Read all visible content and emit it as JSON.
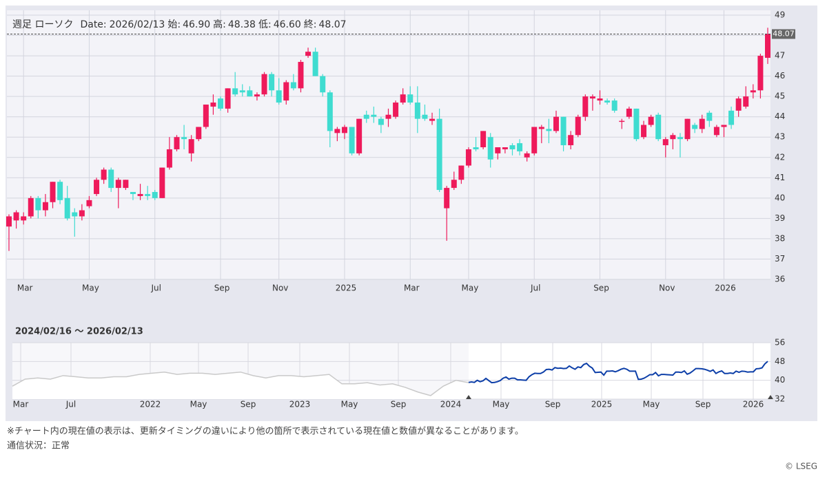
{
  "header": {
    "title": "週足 ローソク",
    "date_label": "Date:",
    "date": "2026/02/13",
    "open_label": "始:",
    "open": "46.90",
    "high_label": "高:",
    "high": "48.38",
    "low_label": "低:",
    "low": "46.60",
    "close_label": "終:",
    "close": "48.07"
  },
  "chart_data": [
    {
      "type": "candlestick",
      "categories": [
        null,
        null,
        "Mar",
        null,
        null,
        null,
        null,
        null,
        null,
        null,
        null,
        "May",
        null,
        null,
        null,
        null,
        null,
        null,
        null,
        null,
        "Jul",
        null,
        null,
        null,
        null,
        null,
        null,
        null,
        null,
        "Sep",
        null,
        null,
        null,
        null,
        null,
        null,
        null,
        "Nov",
        null,
        null,
        null,
        null,
        null,
        null,
        null,
        null,
        "2025",
        null,
        null,
        null,
        null,
        null,
        null,
        null,
        null,
        "Mar",
        null,
        null,
        null,
        null,
        null,
        null,
        null,
        "May",
        null,
        null,
        null,
        null,
        null,
        null,
        null,
        null,
        "Jul",
        null,
        null,
        null,
        null,
        null,
        null,
        null,
        null,
        "Sep",
        null,
        null,
        null,
        null,
        null,
        null,
        null,
        null,
        "Nov",
        null,
        null,
        null,
        null,
        null,
        null,
        null,
        "2026",
        null,
        null,
        null,
        null,
        null,
        null
      ],
      "open": [
        38.6,
        38.9,
        38.9,
        39.1,
        40.0,
        39.4,
        39.8,
        40.8,
        40.0,
        39.3,
        39.1,
        39.6,
        40.2,
        40.9,
        41.4,
        40.5,
        40.5,
        40.3,
        40.1,
        40.2,
        40.3,
        40.0,
        41.5,
        42.4,
        43.0,
        42.2,
        42.9,
        43.5,
        44.5,
        44.9,
        44.4,
        45.4,
        45.3,
        45.3,
        45.0,
        45.1,
        46.1,
        45.3,
        44.8,
        45.7,
        45.4,
        47.0,
        47.2,
        46.0,
        45.2,
        43.2,
        43.2,
        43.5,
        42.2,
        44.1,
        44.1,
        43.9,
        43.9,
        44.0,
        44.7,
        45.1,
        44.7,
        44.1,
        43.8,
        43.9,
        39.5,
        40.5,
        40.9,
        41.6,
        42.5,
        42.5,
        43.0,
        42.2,
        42.4,
        42.6,
        42.7,
        42.0,
        42.2,
        43.4,
        43.4,
        43.3,
        44.0,
        42.6,
        43.1,
        44.0,
        44.9,
        44.8,
        44.8,
        44.8,
        43.8,
        44.0,
        44.4,
        43.0,
        43.6,
        44.1,
        42.6,
        42.9,
        43.0,
        42.9,
        43.6,
        43.4,
        44.2,
        43.1,
        43.5,
        44.3,
        44.3,
        44.5,
        45.2,
        45.3,
        46.9
      ],
      "high": [
        39.2,
        39.4,
        39.3,
        40.1,
        40.1,
        40.2,
        40.8,
        40.9,
        40.6,
        39.5,
        39.7,
        40.1,
        41.0,
        41.5,
        41.5,
        41.0,
        40.9,
        40.3,
        40.7,
        40.6,
        40.4,
        41.5,
        43.0,
        43.1,
        43.6,
        43.1,
        43.5,
        44.6,
        45.1,
        45.0,
        45.4,
        46.2,
        45.6,
        45.5,
        45.2,
        46.2,
        46.2,
        45.9,
        45.8,
        46.1,
        46.8,
        47.4,
        47.4,
        46.1,
        45.3,
        43.5,
        43.6,
        43.5,
        43.9,
        44.3,
        44.5,
        44.0,
        44.4,
        44.8,
        45.4,
        45.5,
        45.5,
        44.6,
        44.2,
        44.4,
        40.6,
        41.3,
        41.6,
        42.5,
        43.0,
        43.3,
        43.2,
        42.5,
        42.5,
        42.7,
        42.9,
        42.3,
        43.5,
        43.6,
        43.9,
        44.3,
        44.0,
        43.3,
        44.1,
        45.1,
        45.1,
        45.3,
        44.9,
        44.9,
        43.9,
        44.5,
        44.4,
        43.8,
        44.1,
        44.2,
        43.0,
        43.2,
        43.2,
        43.9,
        43.7,
        44.1,
        44.3,
        43.6,
        43.6,
        44.5,
        45.0,
        45.5,
        45.6,
        47.1,
        48.38
      ],
      "low": [
        37.4,
        38.5,
        38.7,
        39.0,
        39.0,
        39.1,
        39.5,
        39.7,
        38.9,
        38.1,
        38.9,
        39.5,
        40.1,
        40.7,
        40.3,
        39.5,
        40.4,
        39.9,
        39.9,
        39.9,
        39.9,
        40.0,
        41.4,
        42.3,
        42.4,
        41.8,
        42.8,
        43.4,
        44.1,
        44.3,
        44.2,
        45.0,
        45.0,
        45.0,
        44.8,
        45.0,
        45.0,
        44.6,
        44.6,
        45.3,
        45.2,
        46.9,
        46.0,
        45.0,
        42.5,
        42.8,
        42.9,
        42.1,
        42.1,
        43.7,
        43.7,
        43.2,
        43.5,
        43.9,
        44.6,
        44.6,
        43.2,
        43.8,
        43.6,
        40.3,
        37.9,
        40.4,
        40.7,
        41.5,
        42.3,
        42.4,
        41.5,
        41.9,
        42.2,
        42.1,
        42.1,
        41.8,
        42.1,
        42.7,
        42.7,
        43.2,
        42.3,
        42.4,
        43.0,
        43.8,
        44.3,
        44.6,
        44.6,
        44.2,
        43.4,
        43.9,
        42.8,
        42.9,
        43.5,
        42.8,
        42.0,
        42.4,
        42.0,
        42.8,
        43.2,
        43.2,
        43.5,
        43.0,
        43.0,
        43.4,
        44.0,
        44.4,
        44.9,
        44.9,
        46.6
      ],
      "close": [
        39.1,
        39.3,
        39.1,
        40.0,
        39.4,
        39.8,
        40.8,
        39.9,
        39.0,
        39.1,
        39.4,
        39.9,
        40.9,
        41.4,
        40.5,
        40.9,
        40.9,
        40.2,
        40.2,
        40.1,
        40.0,
        41.5,
        42.4,
        43.0,
        42.9,
        42.9,
        43.5,
        44.6,
        44.7,
        44.4,
        45.4,
        45.1,
        45.2,
        45.0,
        45.1,
        46.1,
        45.3,
        44.7,
        45.7,
        45.4,
        46.7,
        47.2,
        46.0,
        45.2,
        43.3,
        43.4,
        43.5,
        42.2,
        43.9,
        43.9,
        44.0,
        43.6,
        44.1,
        44.7,
        45.1,
        44.7,
        43.9,
        43.9,
        43.9,
        40.4,
        40.5,
        40.9,
        41.6,
        42.4,
        42.4,
        43.3,
        41.9,
        42.5,
        42.5,
        42.4,
        42.3,
        42.2,
        43.5,
        43.5,
        43.3,
        44.0,
        42.6,
        43.1,
        44.0,
        45.0,
        45.0,
        44.9,
        44.7,
        44.3,
        43.8,
        44.4,
        42.9,
        43.6,
        44.0,
        42.9,
        42.9,
        43.1,
        42.9,
        43.9,
        43.4,
        43.9,
        43.8,
        43.5,
        43.6,
        43.6,
        44.9,
        45.0,
        45.3,
        47.0,
        48.07
      ],
      "up_color": "#ee1a5b",
      "down_color": "#3fdcd0",
      "ylim": [
        36,
        49
      ],
      "yticks": [
        36,
        37,
        38,
        39,
        40,
        41,
        42,
        43,
        44,
        45,
        46,
        47,
        48,
        49
      ],
      "grid": true
    },
    {
      "type": "navigator",
      "title": "2024/02/16 〜 2026/02/13",
      "xtick_labels": [
        "Mar",
        "Jul",
        "2022",
        "May",
        "Sep",
        "2023",
        "May",
        "Sep",
        "2024",
        "May",
        "Sep",
        "2025",
        "May",
        "Sep",
        "2026"
      ],
      "history": {
        "color": "#c9c9c9",
        "values": [
          37.5,
          40.5,
          41.0,
          40.5,
          42.0,
          41.5,
          41.0,
          41.0,
          41.5,
          41.5,
          42.5,
          43.0,
          43.5,
          42.5,
          43.0,
          43.0,
          42.5,
          43.0,
          43.5,
          42.0,
          41.0,
          42.0,
          42.0,
          41.5,
          42.0,
          42.5,
          38.5,
          38.5,
          39.0,
          38.0,
          38.5,
          37.0,
          35.0,
          33.5,
          37.5,
          40.0,
          39.0
        ]
      },
      "color": "#0c3ea8",
      "ylim": [
        32,
        56
      ],
      "yticks": [
        56,
        48,
        40,
        32
      ]
    }
  ],
  "footer": {
    "note": "※チャート内の現在値の表示は、更新タイミングの違いにより他の箇所で表示されている現在値と数値が異なることがあります。",
    "status": "通信状況：正常",
    "copyright": "© LSEG"
  }
}
